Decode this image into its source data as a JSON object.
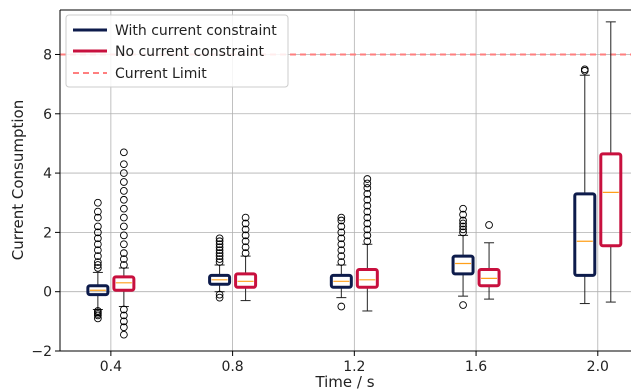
{
  "chart_data": {
    "type": "box",
    "xlabel": "Time / s",
    "ylabel": "Current Consumption",
    "ylim": [
      -2,
      9.5
    ],
    "y_ticks": [
      -2,
      0,
      2,
      4,
      6,
      8
    ],
    "categories": [
      "0.4",
      "0.8",
      "1.2",
      "1.6",
      "2.0"
    ],
    "grid": true,
    "legend_position": "top-left",
    "reference_line": {
      "label": "Current Limit",
      "value": 8,
      "color": "#ff7f7f"
    },
    "series": [
      {
        "name": "With current constraint",
        "color": "#0d1b4b",
        "boxes": [
          {
            "whisker_low": -0.6,
            "q1": -0.1,
            "median": 0.05,
            "q3": 0.2,
            "whisker_high": 0.65,
            "outliers": [
              -0.65,
              -0.7,
              -0.75,
              -0.8,
              -0.9,
              0.8,
              0.9,
              1.0,
              1.2,
              1.4,
              1.6,
              1.8,
              2.0,
              2.2,
              2.5,
              2.7,
              3.0
            ]
          },
          {
            "whisker_low": 0.0,
            "q1": 0.25,
            "median": 0.4,
            "q3": 0.55,
            "whisker_high": 0.9,
            "outliers": [
              -0.1,
              -0.2,
              1.0,
              1.1,
              1.2,
              1.3,
              1.4,
              1.5,
              1.6,
              1.7,
              1.8
            ]
          },
          {
            "whisker_low": -0.2,
            "q1": 0.15,
            "median": 0.35,
            "q3": 0.55,
            "whisker_high": 0.9,
            "outliers": [
              -0.5,
              1.0,
              1.2,
              1.4,
              1.6,
              1.8,
              2.0,
              2.2,
              2.4,
              2.5
            ]
          },
          {
            "whisker_low": -0.15,
            "q1": 0.6,
            "median": 0.95,
            "q3": 1.2,
            "whisker_high": 1.9,
            "outliers": [
              -0.45,
              2.0,
              2.1,
              2.2,
              2.3,
              2.4,
              2.6,
              2.8
            ]
          },
          {
            "whisker_low": -0.4,
            "q1": 0.55,
            "median": 1.7,
            "q3": 3.3,
            "whisker_high": 7.3,
            "outliers": [
              7.45,
              7.5
            ]
          }
        ]
      },
      {
        "name": "No current constraint",
        "color": "#c8103e",
        "boxes": [
          {
            "whisker_low": -0.5,
            "q1": 0.05,
            "median": 0.3,
            "q3": 0.5,
            "whisker_high": 0.8,
            "outliers": [
              -0.6,
              -0.8,
              -1.0,
              -1.2,
              -1.45,
              0.9,
              1.1,
              1.3,
              1.6,
              1.9,
              2.2,
              2.5,
              2.8,
              3.1,
              3.4,
              3.7,
              4.0,
              4.3,
              4.7
            ]
          },
          {
            "whisker_low": -0.3,
            "q1": 0.15,
            "median": 0.35,
            "q3": 0.6,
            "whisker_high": 1.2,
            "outliers": [
              1.3,
              1.5,
              1.7,
              1.9,
              2.1,
              2.3,
              2.5
            ]
          },
          {
            "whisker_low": -0.65,
            "q1": 0.15,
            "median": 0.4,
            "q3": 0.75,
            "whisker_high": 1.6,
            "outliers": [
              1.7,
              1.9,
              2.1,
              2.3,
              2.5,
              2.7,
              2.9,
              3.1,
              3.3,
              3.5,
              3.65,
              3.8
            ]
          },
          {
            "whisker_low": -0.25,
            "q1": 0.2,
            "median": 0.45,
            "q3": 0.75,
            "whisker_high": 1.65,
            "outliers": [
              2.25
            ]
          },
          {
            "whisker_low": -0.35,
            "q1": 1.55,
            "median": 3.35,
            "q3": 4.65,
            "whisker_high": 9.1,
            "outliers": []
          }
        ]
      }
    ]
  }
}
